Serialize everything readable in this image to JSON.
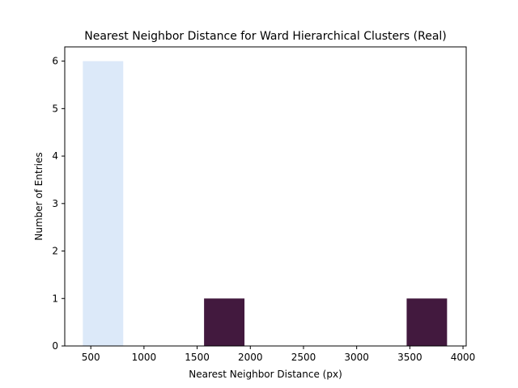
{
  "chart_data": {
    "type": "bar",
    "title": "Nearest Neighbor Distance for Ward Hierarchical Clusters (Real)",
    "xlabel": "Nearest Neighbor Distance (px)",
    "ylabel": "Number of Entries",
    "xlim": [
      255,
      4030
    ],
    "ylim": [
      0,
      6.3
    ],
    "xticks": [
      500,
      1000,
      1500,
      2000,
      2500,
      3000,
      3500,
      4000
    ],
    "xtick_labels": [
      "500",
      "1000",
      "1500",
      "2000",
      "2500",
      "3000",
      "3500",
      "4000"
    ],
    "yticks": [
      0,
      1,
      2,
      3,
      4,
      5,
      6
    ],
    "ytick_labels": [
      "0",
      "1",
      "2",
      "3",
      "4",
      "5",
      "6"
    ],
    "grid": false,
    "bins": [
      {
        "x0": 425,
        "x1": 805,
        "count": 6,
        "color": "#dce9f9"
      },
      {
        "x0": 1565,
        "x1": 1945,
        "count": 1,
        "color": "#42193e"
      },
      {
        "x0": 3470,
        "x1": 3850,
        "count": 1,
        "color": "#42193e"
      }
    ]
  }
}
